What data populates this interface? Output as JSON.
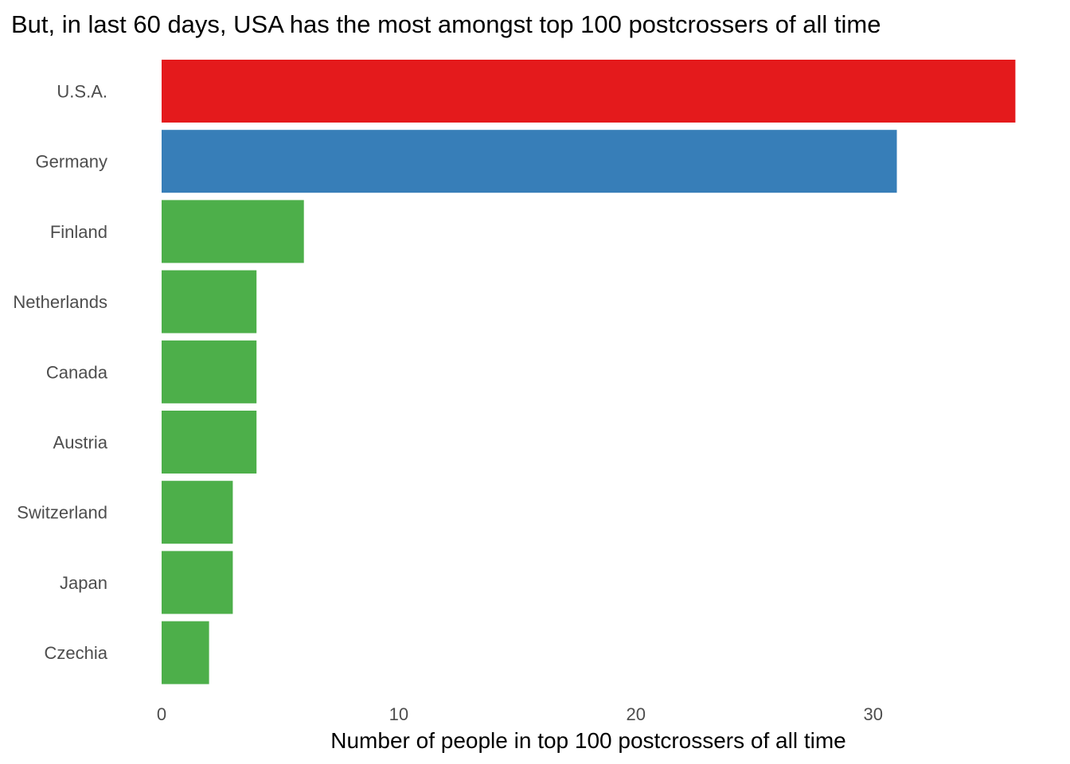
{
  "chart_data": {
    "type": "bar",
    "orientation": "horizontal",
    "title": "But, in last 60 days, USA has the most amongst top 100 postcrossers of all time",
    "xlabel": "Number of people in top 100 postcrossers of all time",
    "ylabel": "",
    "categories": [
      "U.S.A.",
      "Germany",
      "Finland",
      "Netherlands",
      "Canada",
      "Austria",
      "Switzerland",
      "Japan",
      "Czechia"
    ],
    "values": [
      36,
      31,
      6,
      4,
      4,
      4,
      3,
      3,
      2
    ],
    "colors": [
      "#e41a1c",
      "#377eb8",
      "#4daf4a",
      "#4daf4a",
      "#4daf4a",
      "#4daf4a",
      "#4daf4a",
      "#4daf4a",
      "#4daf4a"
    ],
    "xlim": [
      0,
      36
    ],
    "xticks": [
      0,
      10,
      20,
      30
    ],
    "grid": false,
    "legend": "none"
  }
}
